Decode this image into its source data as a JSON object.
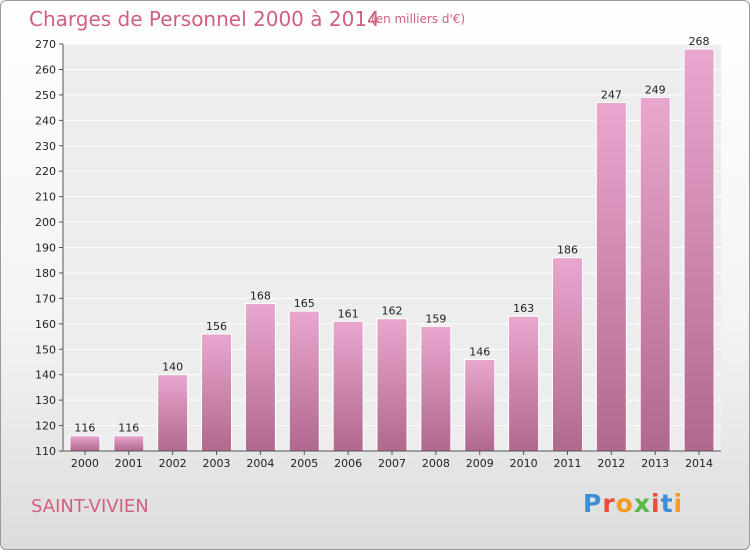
{
  "header": {
    "title": "Charges de Personnel 2000 à 2014",
    "unit": "(en milliers d'€)"
  },
  "footer": {
    "commune": "SAINT-VIVIEN",
    "brand": "Proxiti"
  },
  "colors": {
    "accent": "#d0607e",
    "bar": "#c07aa2",
    "logo": [
      "#3a8fd8",
      "#e94e3c",
      "#f39b24",
      "#5ab947",
      "#e94e3c",
      "#3a8fd8",
      "#f39b24"
    ]
  },
  "chart_data": {
    "type": "bar",
    "title": "Charges de Personnel 2000 à 2014",
    "categories": [
      "2000",
      "2001",
      "2002",
      "2003",
      "2004",
      "2005",
      "2006",
      "2007",
      "2008",
      "2009",
      "2010",
      "2011",
      "2012",
      "2013",
      "2014"
    ],
    "values": [
      116,
      116,
      140,
      156,
      168,
      165,
      161,
      162,
      159,
      146,
      163,
      186,
      247,
      249,
      268
    ],
    "ylim": [
      110,
      270
    ],
    "yticks": [
      110,
      120,
      130,
      140,
      150,
      160,
      170,
      180,
      190,
      200,
      210,
      220,
      230,
      240,
      250,
      260,
      270
    ],
    "grid": true
  }
}
